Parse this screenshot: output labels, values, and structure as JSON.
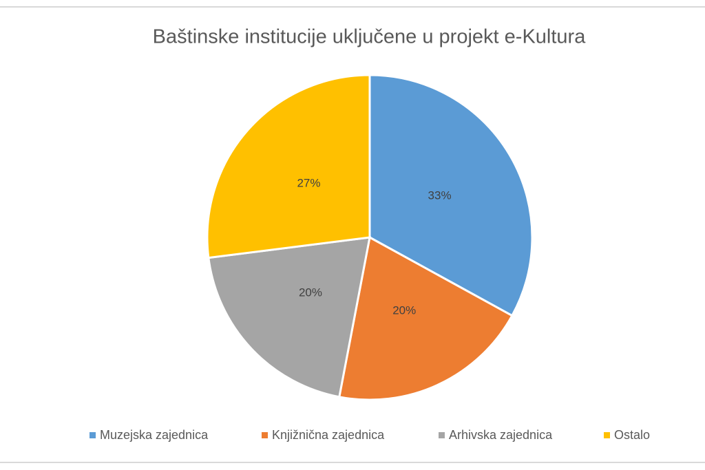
{
  "chart_data": {
    "type": "pie",
    "title": "Baštinske institucije uključene u projekt e-Kultura",
    "categories": [
      "Muzejska zajednica",
      "Knjižnična zajednica",
      "Arhivska zajednica",
      "Ostalo"
    ],
    "values": [
      33,
      20,
      20,
      27
    ],
    "value_labels": [
      "33%",
      "20%",
      "20%",
      "27%"
    ],
    "colors": [
      "#5b9bd5",
      "#ed7d31",
      "#a5a5a5",
      "#ffc000"
    ],
    "legend": "bottom"
  }
}
